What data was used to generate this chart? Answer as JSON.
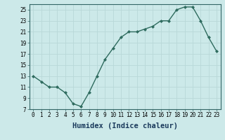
{
  "x": [
    0,
    1,
    2,
    3,
    4,
    5,
    6,
    7,
    8,
    9,
    10,
    11,
    12,
    13,
    14,
    15,
    16,
    17,
    18,
    19,
    20,
    21,
    22,
    23
  ],
  "y": [
    13,
    12,
    11,
    11,
    10,
    8,
    7.5,
    10,
    13,
    16,
    18,
    20,
    21,
    21,
    21.5,
    22,
    23,
    23,
    25,
    25.5,
    25.5,
    23,
    20,
    17.5
  ],
  "line_color": "#2e6b5e",
  "marker": "D",
  "marker_size": 2.0,
  "bg_color": "#cce9e9",
  "grid_color": "#b8d8d8",
  "xlabel": "Humidex (Indice chaleur)",
  "xlim": [
    -0.5,
    23.5
  ],
  "ylim": [
    7,
    26
  ],
  "yticks": [
    7,
    9,
    11,
    13,
    15,
    17,
    19,
    21,
    23,
    25
  ],
  "xticks": [
    0,
    1,
    2,
    3,
    4,
    5,
    6,
    7,
    8,
    9,
    10,
    11,
    12,
    13,
    14,
    15,
    16,
    17,
    18,
    19,
    20,
    21,
    22,
    23
  ],
  "tick_fontsize": 5.5,
  "xlabel_fontsize": 7.5,
  "line_width": 1.0
}
